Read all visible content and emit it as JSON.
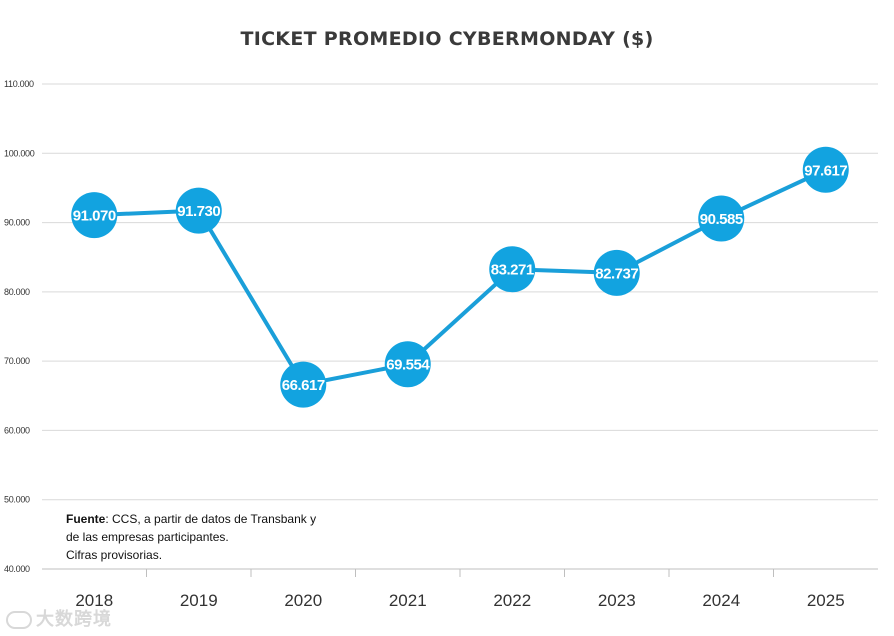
{
  "chart_data": {
    "type": "line",
    "title": "TICKET PROMEDIO CYBERMONDAY ($)",
    "xlabel": "",
    "ylabel": "",
    "categories": [
      "2018",
      "2019",
      "2020",
      "2021",
      "2022",
      "2023",
      "2024",
      "2025"
    ],
    "values": [
      91070,
      91730,
      66617,
      69554,
      83271,
      82737,
      90585,
      97617
    ],
    "value_labels": [
      "91.070",
      "91.730",
      "66.617",
      "69.554",
      "83.271",
      "82.737",
      "90.585",
      "97.617"
    ],
    "ylim": [
      40000,
      110000
    ],
    "yticks": [
      40000,
      50000,
      60000,
      70000,
      80000,
      90000,
      100000,
      110000
    ],
    "ytick_labels": [
      "40.000",
      "50.000",
      "60.000",
      "70.000",
      "80.000",
      "90.000",
      "100.000",
      "110.000"
    ],
    "grid": true,
    "legend": "none",
    "colors": {
      "series": "#1a9fd9",
      "marker": "#12a3e0",
      "label": "#ffffff",
      "grid": "#d9d9d9"
    }
  },
  "source": {
    "label": "Fuente",
    "text": ": CCS, a partir de datos de Transbank y",
    "line2": "de las empresas participantes.",
    "line3": "Cifras provisorias."
  },
  "watermark": {
    "text": "大数跨境"
  }
}
